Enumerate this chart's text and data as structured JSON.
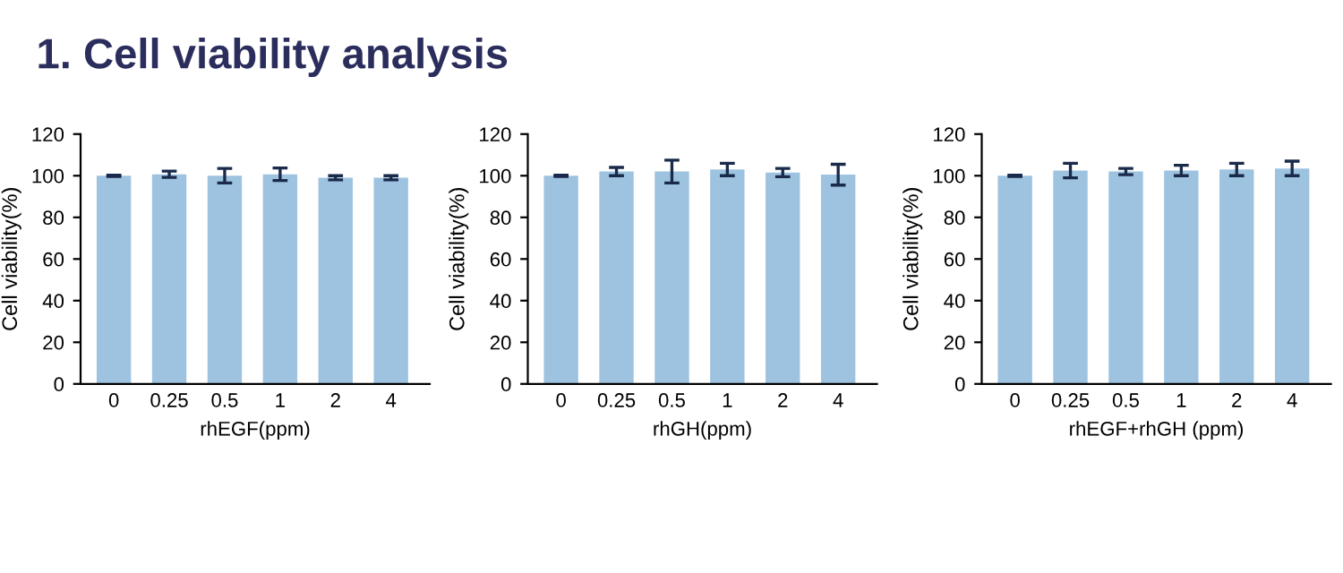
{
  "chart_data": [
    {
      "type": "bar",
      "title": "1. Cell viability analysis",
      "xlabel": "rhEGF(ppm)",
      "ylabel": "Cell viability(%)",
      "categories": [
        "0",
        "0.25",
        "0.5",
        "1",
        "2",
        "4"
      ],
      "color": "#9dc3e0",
      "values": [
        100,
        100.7,
        100,
        100.7,
        99,
        99
      ],
      "errors": [
        0.3,
        1.5,
        3.5,
        3,
        1,
        1
      ],
      "ylim": [
        0,
        120
      ],
      "yticks": [
        0,
        20,
        40,
        60,
        80,
        100,
        120
      ],
      "grid": false,
      "legend": false
    },
    {
      "type": "bar",
      "xlabel": "rhGH(ppm)",
      "ylabel": "Cell viability(%)",
      "categories": [
        "0",
        "0.25",
        "0.5",
        "1",
        "2",
        "4"
      ],
      "color": "#9dc3e0",
      "values": [
        100,
        102,
        102,
        103,
        101.5,
        100.5
      ],
      "errors": [
        0.3,
        2,
        5.5,
        3,
        2,
        5
      ],
      "ylim": [
        0,
        120
      ],
      "yticks": [
        0,
        20,
        40,
        60,
        80,
        100,
        120
      ],
      "grid": false,
      "legend": false
    },
    {
      "type": "bar",
      "xlabel": "rhEGF+rhGH (ppm)",
      "ylabel": "Cell viability(%)",
      "categories": [
        "0",
        "0.25",
        "0.5",
        "1",
        "2",
        "4"
      ],
      "color": "#9dc3e0",
      "values": [
        100,
        102.5,
        102,
        102.5,
        103,
        103.5
      ],
      "errors": [
        0.3,
        3.5,
        1.5,
        2.5,
        3,
        3.5
      ],
      "ylim": [
        0,
        120
      ],
      "yticks": [
        0,
        20,
        40,
        60,
        80,
        100,
        120
      ],
      "grid": false,
      "legend": false
    }
  ]
}
